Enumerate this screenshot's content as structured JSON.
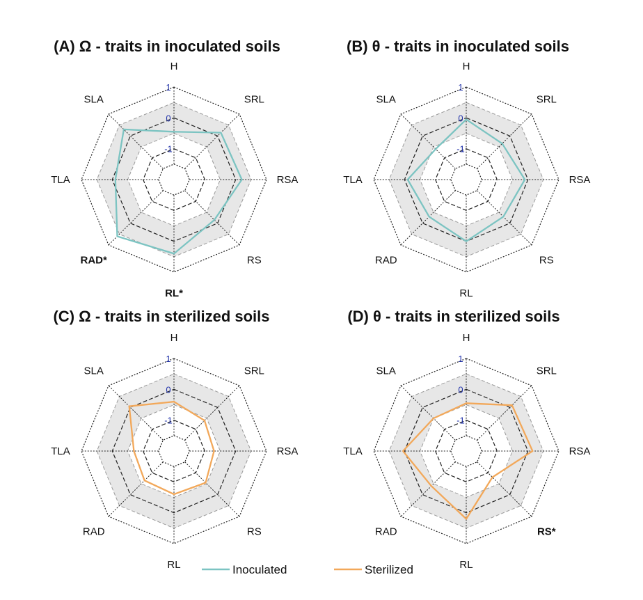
{
  "chart_data": [
    {
      "type": "radar",
      "panel": "A",
      "title": "(A) Ω - traits in inoculated soils",
      "axes": [
        "H",
        "SRL",
        "RSA",
        "RS",
        "RL*",
        "RAD*",
        "TLA",
        "SLA"
      ],
      "significant_axes": [
        "RL*",
        "RAD*"
      ],
      "rlim": [
        -2,
        1
      ],
      "ticks": [
        {
          "value": 1,
          "label": "1"
        },
        {
          "value": 0,
          "label": "0"
        },
        {
          "value": -1,
          "label": "-1"
        }
      ],
      "series": [
        {
          "name": "Inoculated",
          "values": [
            -0.45,
            0.15,
            0.2,
            -0.15,
            0.4,
            0.6,
            -0.1,
            0.3
          ]
        }
      ]
    },
    {
      "type": "radar",
      "panel": "B",
      "title": "(B) θ - traits in inoculated soils",
      "axes": [
        "H",
        "SRL",
        "RSA",
        "RS",
        "RL",
        "RAD",
        "TLA",
        "SLA"
      ],
      "significant_axes": [],
      "rlim": [
        -2,
        1
      ],
      "ticks": [
        {
          "value": 1,
          "label": "1"
        },
        {
          "value": 0,
          "label": "0"
        },
        {
          "value": -1,
          "label": "-1"
        }
      ],
      "series": [
        {
          "name": "Inoculated",
          "values": [
            -0.05,
            -0.35,
            -0.1,
            -0.3,
            0.0,
            -0.3,
            -0.1,
            -0.6
          ]
        }
      ]
    },
    {
      "type": "radar",
      "panel": "C",
      "title": "(C) Ω - traits in sterilized soils",
      "axes": [
        "H",
        "SRL",
        "RSA",
        "RS",
        "RL",
        "RAD",
        "TLA",
        "SLA"
      ],
      "significant_axes": [],
      "rlim": [
        -2,
        1
      ],
      "ticks": [
        {
          "value": 1,
          "label": "1"
        },
        {
          "value": 0,
          "label": "0"
        },
        {
          "value": -1,
          "label": "-1"
        }
      ],
      "series": [
        {
          "name": "Sterilized",
          "values": [
            -0.4,
            -0.6,
            -0.7,
            -0.55,
            -0.6,
            -0.65,
            -0.7,
            0.05
          ]
        }
      ]
    },
    {
      "type": "radar",
      "panel": "D",
      "title": "(D) θ - traits in sterilized soils",
      "axes": [
        "H",
        "SRL",
        "RSA",
        "RS*",
        "RL",
        "RAD",
        "TLA",
        "SLA"
      ],
      "significant_axes": [
        "RS*"
      ],
      "rlim": [
        -2,
        1
      ],
      "ticks": [
        {
          "value": 1,
          "label": "1"
        },
        {
          "value": 0,
          "label": "0"
        },
        {
          "value": -1,
          "label": "-1"
        }
      ],
      "series": [
        {
          "name": "Sterilized",
          "values": [
            -0.45,
            0.1,
            0.15,
            -0.8,
            0.2,
            -0.4,
            0.05,
            -0.5
          ]
        }
      ]
    }
  ],
  "legend": [
    {
      "name": "Inoculated",
      "color": "#7cc4c2"
    },
    {
      "name": "Sterilized",
      "color": "#f2a85a"
    }
  ],
  "colors": {
    "band_fill": "#e7e7e7",
    "grid": "#222222",
    "tick_label": "#2233aa"
  }
}
